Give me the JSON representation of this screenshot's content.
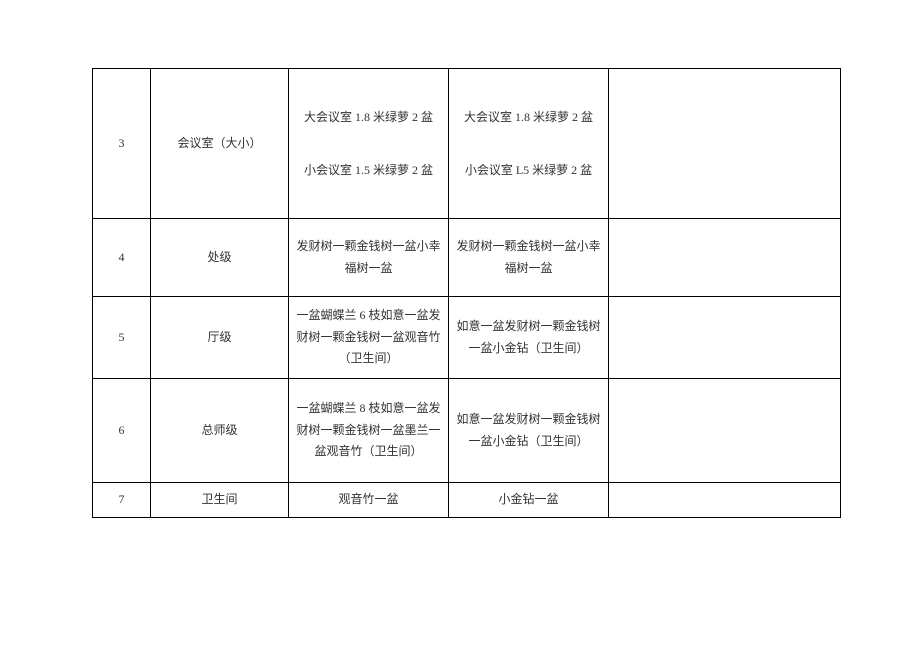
{
  "table": {
    "rows": [
      {
        "num": "3",
        "name": "会议室（大小）",
        "col3_line1": "大会议室 1.8 米绿萝 2 盆",
        "col3_line2": "小会议室 1.5 米绿萝 2 盆",
        "col4_line1": "大会议室 1.8 米绿萝 2 盆",
        "col4_line2": "小会议室 L5 米绿萝 2 盆",
        "col5": ""
      },
      {
        "num": "4",
        "name": "处级",
        "col3": "发财树一颗金钱树一盆小幸福树一盆",
        "col4": "发财树一颗金钱树一盆小幸福树一盆",
        "col5": ""
      },
      {
        "num": "5",
        "name": "厅级",
        "col3": "一盆蝴蝶兰 6 枝如意一盆发财树一颗金钱树一盆观音竹（卫生间）",
        "col4": "如意一盆发财树一颗金钱树一盆小金钻（卫生间）",
        "col5": ""
      },
      {
        "num": "6",
        "name": "总师级",
        "col3": "一盆蝴蝶兰 8 枝如意一盆发财树一颗金钱树一盆墨兰一盆观音竹（卫生间）",
        "col4": "如意一盆发财树一颗金钱树一盆小金钻（卫生间）",
        "col5": ""
      },
      {
        "num": "7",
        "name": "卫生间",
        "col3": "观音竹一盆",
        "col4": "小金钻一盆",
        "col5": ""
      }
    ],
    "border_color": "#000000",
    "background_color": "#ffffff",
    "text_color": "#333333",
    "font_size": 12
  }
}
